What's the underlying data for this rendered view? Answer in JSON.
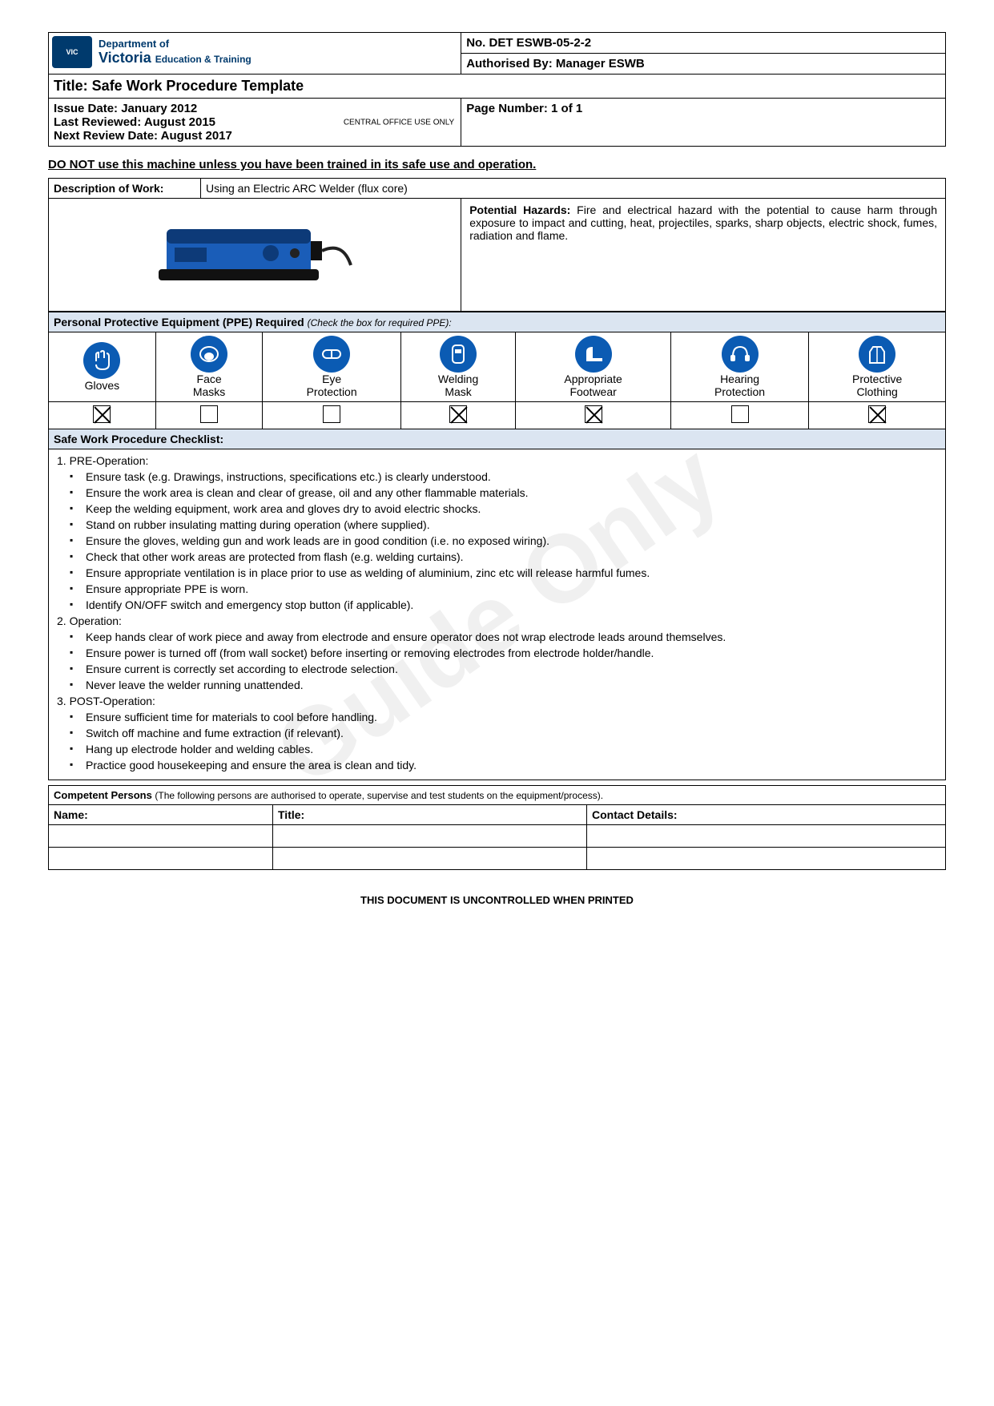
{
  "header": {
    "logo": {
      "state": "State Government",
      "victoria": "Victoria",
      "dept": "Department of",
      "et": "Education & Training"
    },
    "docNo": "No. DET ESWB-05-2-2",
    "authorised": "Authorised By: Manager ESWB",
    "title": "Title:  Safe Work Procedure Template",
    "issue": "Issue Date: January 2012",
    "reviewed": "Last Reviewed: August 2015",
    "next": "Next Review Date: August 2017",
    "central": "CENTRAL OFFICE USE ONLY",
    "page": "Page Number:  1 of 1"
  },
  "warning": "DO NOT use this machine unless you have been trained in its safe use and operation.",
  "description": {
    "label": "Description of Work:",
    "value": "Using an Electric ARC Welder (flux core)"
  },
  "hazards": {
    "label": "Potential Hazards:",
    "text": " Fire and electrical hazard with the potential to cause harm through exposure to impact and cutting, heat, projectiles, sparks, sharp objects, electric shock, fumes, radiation and flame."
  },
  "ppe": {
    "header": "Personal Protective Equipment (PPE) Required ",
    "sub": "(Check the box for required PPE):",
    "items": [
      {
        "label": "Gloves",
        "checked": true
      },
      {
        "label": "Face Masks",
        "checked": false
      },
      {
        "label": "Eye Protection",
        "checked": false
      },
      {
        "label": "Welding Mask",
        "checked": true
      },
      {
        "label": "Appropriate Footwear",
        "checked": true
      },
      {
        "label": "Hearing Protection",
        "checked": false
      },
      {
        "label": "Protective Clothing",
        "checked": true
      }
    ]
  },
  "checklist": {
    "header": "Safe Work Procedure Checklist:",
    "sections": [
      {
        "title": "1. PRE-Operation:",
        "items": [
          "Ensure task (e.g. Drawings, instructions, specifications etc.) is clearly understood.",
          "Ensure the work area is clean and clear of grease, oil and any other flammable materials.",
          "Keep the welding equipment, work area and gloves dry to avoid electric shocks.",
          "Stand on rubber insulating matting during operation (where supplied).",
          "Ensure the gloves, welding gun and work leads are in good condition (i.e. no exposed wiring).",
          "Check that other work areas are protected from flash (e.g. welding curtains).",
          "Ensure appropriate ventilation is in place prior to use as welding of aluminium, zinc etc will release harmful fumes.",
          "Ensure appropriate PPE is worn.",
          "Identify ON/OFF switch and emergency stop button (if applicable)."
        ]
      },
      {
        "title": "2. Operation:",
        "items": [
          "Keep hands clear of work piece and away from electrode and ensure operator does not wrap electrode leads around themselves.",
          "Ensure power is turned off (from wall socket) before inserting or removing electrodes from electrode holder/handle.",
          "Ensure current is correctly set according to electrode selection.",
          "Never leave the welder running unattended."
        ]
      },
      {
        "title": "3. POST-Operation:",
        "items": [
          "Ensure sufficient time for materials to cool before handling.",
          "Switch off machine and fume extraction (if relevant).",
          "Hang up electrode holder and welding cables.",
          "Practice good housekeeping and ensure the area is clean and tidy."
        ]
      }
    ]
  },
  "competent": {
    "header": "Competent Persons ",
    "sub": "(The following persons are authorised to operate, supervise and test students on the equipment/process).",
    "cols": {
      "name": "Name:",
      "title": "Title:",
      "contact": "Contact Details:"
    }
  },
  "footer": "THIS DOCUMENT IS UNCONTROLLED WHEN PRINTED",
  "watermark": "Guide Only"
}
